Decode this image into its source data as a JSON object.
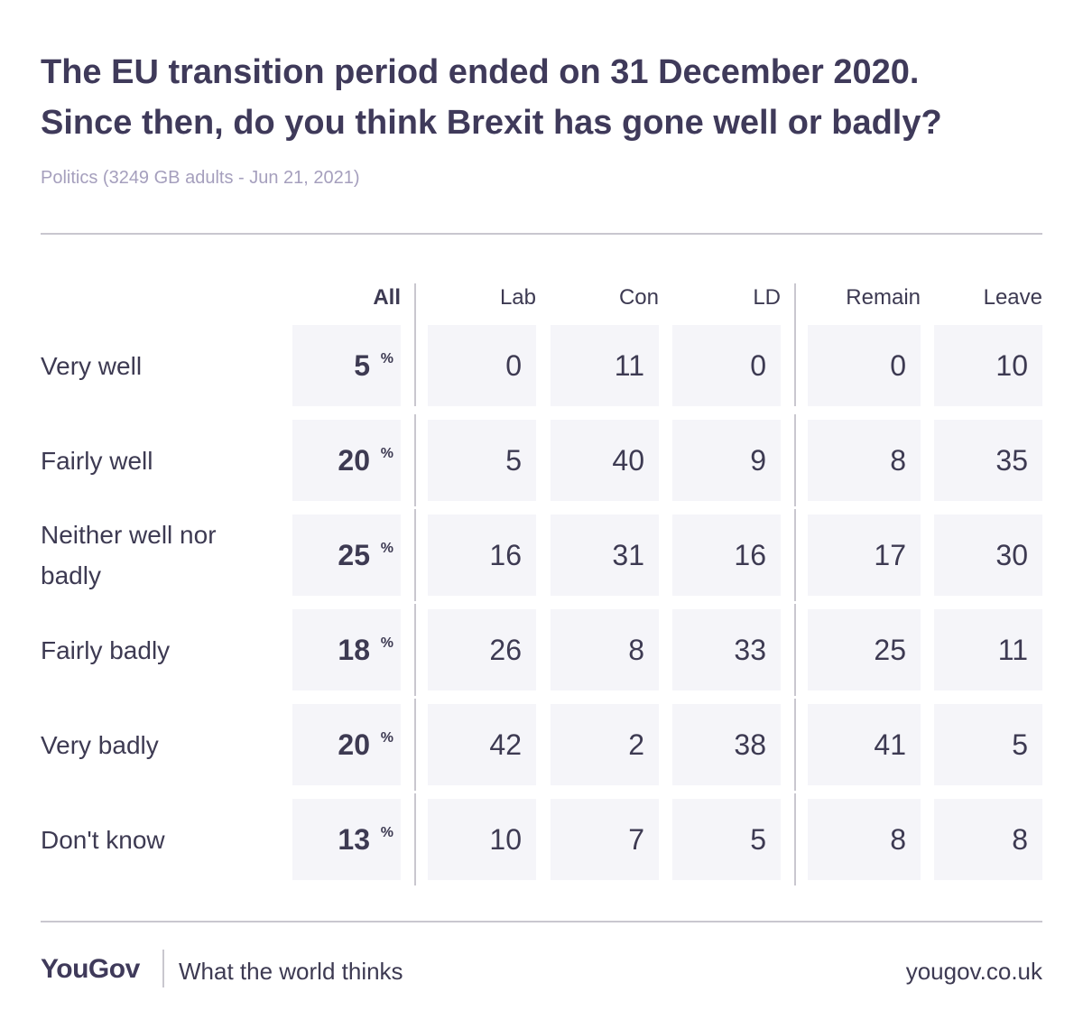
{
  "chart_data": {
    "type": "table",
    "title_line1": "The EU transition period ended on 31 December 2020.",
    "title_line2": "Since then, do you think Brexit has gone well or badly?",
    "subtitle": "Politics (3249 GB adults - Jun 21, 2021)",
    "columns": [
      "All",
      "Lab",
      "Con",
      "LD",
      "Remain",
      "Leave"
    ],
    "percent_symbol": "%",
    "rows": [
      {
        "label": "Very well",
        "values": [
          "5",
          "0",
          "11",
          "0",
          "0",
          "10"
        ]
      },
      {
        "label": "Fairly well",
        "values": [
          "20",
          "5",
          "40",
          "9",
          "8",
          "35"
        ]
      },
      {
        "label": "Neither well nor badly",
        "values": [
          "25",
          "16",
          "31",
          "16",
          "17",
          "30"
        ]
      },
      {
        "label": "Fairly badly",
        "values": [
          "18",
          "26",
          "8",
          "33",
          "25",
          "11"
        ]
      },
      {
        "label": "Very badly",
        "values": [
          "20",
          "42",
          "2",
          "38",
          "41",
          "5"
        ]
      },
      {
        "label": "Don't know",
        "values": [
          "13",
          "10",
          "7",
          "5",
          "8",
          "8"
        ]
      }
    ]
  },
  "footer": {
    "brand": "YouGov",
    "tagline": "What the world thinks",
    "site": "yougov.co.uk"
  },
  "colors": {
    "title": "#3f3a5a",
    "subtitle": "#a59fbd",
    "cell_background": "#f5f5f9",
    "rule": "#c9c7cf"
  }
}
